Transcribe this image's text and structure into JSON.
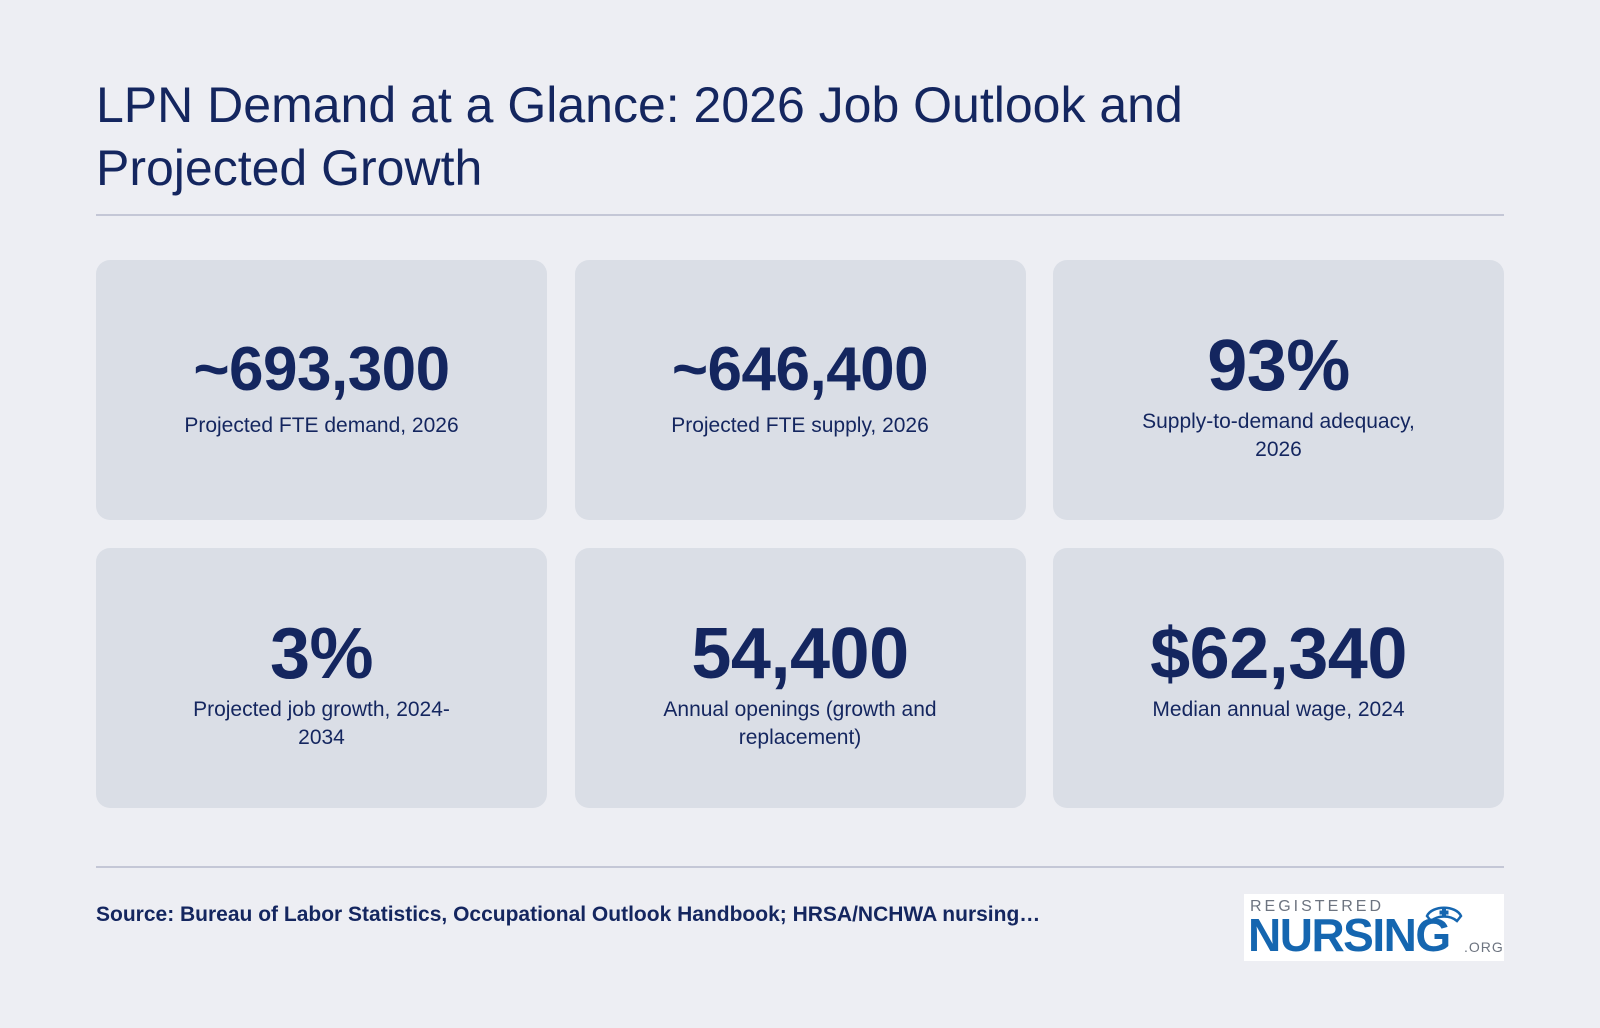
{
  "title": "LPN Demand at a Glance: 2026 Job Outlook and Projected Growth",
  "stats": [
    {
      "value": "~693,300",
      "label": "Projected FTE demand, 2026"
    },
    {
      "value": "~646,400",
      "label": "Projected FTE supply, 2026"
    },
    {
      "value": "93%",
      "label": "Supply-to-demand adequacy, 2026"
    },
    {
      "value": "3%",
      "label": "Projected job growth, 2024-2034"
    },
    {
      "value": "54,400",
      "label": "Annual openings (growth and replacement)"
    },
    {
      "value": "$62,340",
      "label": "Median annual wage, 2024"
    }
  ],
  "source": "Source: Bureau of Labor Statistics, Occupational Outlook Handbook; HRSA/NCHWA nursing…",
  "logo": {
    "top_text": "REGISTERED",
    "main_text": "NURSING",
    "suffix": ".ORG",
    "icon": "nurse-cap-icon",
    "colors": {
      "main": "#1566b0",
      "secondary": "#6d7480"
    }
  },
  "colors": {
    "background": "#edeef3",
    "card": "#dadee6",
    "text": "#14265f"
  }
}
